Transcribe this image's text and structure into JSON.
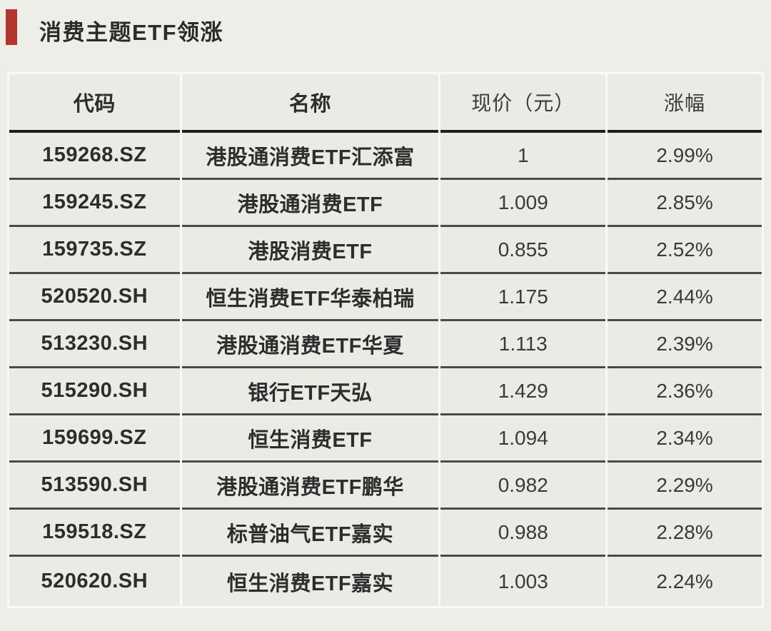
{
  "page": {
    "title": "消费主题ETF领涨",
    "accent_color": "#B23530",
    "background_color": "#EFEDE8"
  },
  "table": {
    "columns": [
      {
        "key": "code",
        "label": "代码"
      },
      {
        "key": "name",
        "label": "名称"
      },
      {
        "key": "price",
        "label": "现价（元）"
      },
      {
        "key": "change",
        "label": "涨幅"
      }
    ],
    "rows": [
      {
        "code": "159268.SZ",
        "name": "港股通消费ETF汇添富",
        "price": "1",
        "change": "2.99%"
      },
      {
        "code": "159245.SZ",
        "name": "港股通消费ETF",
        "price": "1.009",
        "change": "2.85%"
      },
      {
        "code": "159735.SZ",
        "name": "港股消费ETF",
        "price": "0.855",
        "change": "2.52%"
      },
      {
        "code": "520520.SH",
        "name": "恒生消费ETF华泰柏瑞",
        "price": "1.175",
        "change": "2.44%"
      },
      {
        "code": "513230.SH",
        "name": "港股通消费ETF华夏",
        "price": "1.113",
        "change": "2.39%"
      },
      {
        "code": "515290.SH",
        "name": "银行ETF天弘",
        "price": "1.429",
        "change": "2.36%"
      },
      {
        "code": "159699.SZ",
        "name": "恒生消费ETF",
        "price": "1.094",
        "change": "2.34%"
      },
      {
        "code": "513590.SH",
        "name": "港股通消费ETF鹏华",
        "price": "0.982",
        "change": "2.29%"
      },
      {
        "code": "159518.SZ",
        "name": "标普油气ETF嘉实",
        "price": "0.988",
        "change": "2.28%"
      },
      {
        "code": "520620.SH",
        "name": "恒生消费ETF嘉实",
        "price": "1.003",
        "change": "2.24%"
      }
    ]
  },
  "chart_data": {
    "type": "table",
    "title": "消费主题ETF领涨",
    "columns": [
      "代码",
      "名称",
      "现价（元）",
      "涨幅"
    ],
    "rows": [
      [
        "159268.SZ",
        "港股通消费ETF汇添富",
        1,
        "2.99%"
      ],
      [
        "159245.SZ",
        "港股通消费ETF",
        1.009,
        "2.85%"
      ],
      [
        "159735.SZ",
        "港股消费ETF",
        0.855,
        "2.52%"
      ],
      [
        "520520.SH",
        "恒生消费ETF华泰柏瑞",
        1.175,
        "2.44%"
      ],
      [
        "513230.SH",
        "港股通消费ETF华夏",
        1.113,
        "2.39%"
      ],
      [
        "515290.SH",
        "银行ETF天弘",
        1.429,
        "2.36%"
      ],
      [
        "159699.SZ",
        "恒生消费ETF",
        1.094,
        "2.34%"
      ],
      [
        "513590.SH",
        "港股通消费ETF鹏华",
        0.982,
        "2.29%"
      ],
      [
        "159518.SZ",
        "标普油气ETF嘉实",
        0.988,
        "2.28%"
      ],
      [
        "520620.SH",
        "恒生消费ETF嘉实",
        1.003,
        "2.24%"
      ]
    ],
    "change_values_pct": [
      2.99,
      2.85,
      2.52,
      2.44,
      2.39,
      2.36,
      2.34,
      2.29,
      2.28,
      2.24
    ]
  }
}
